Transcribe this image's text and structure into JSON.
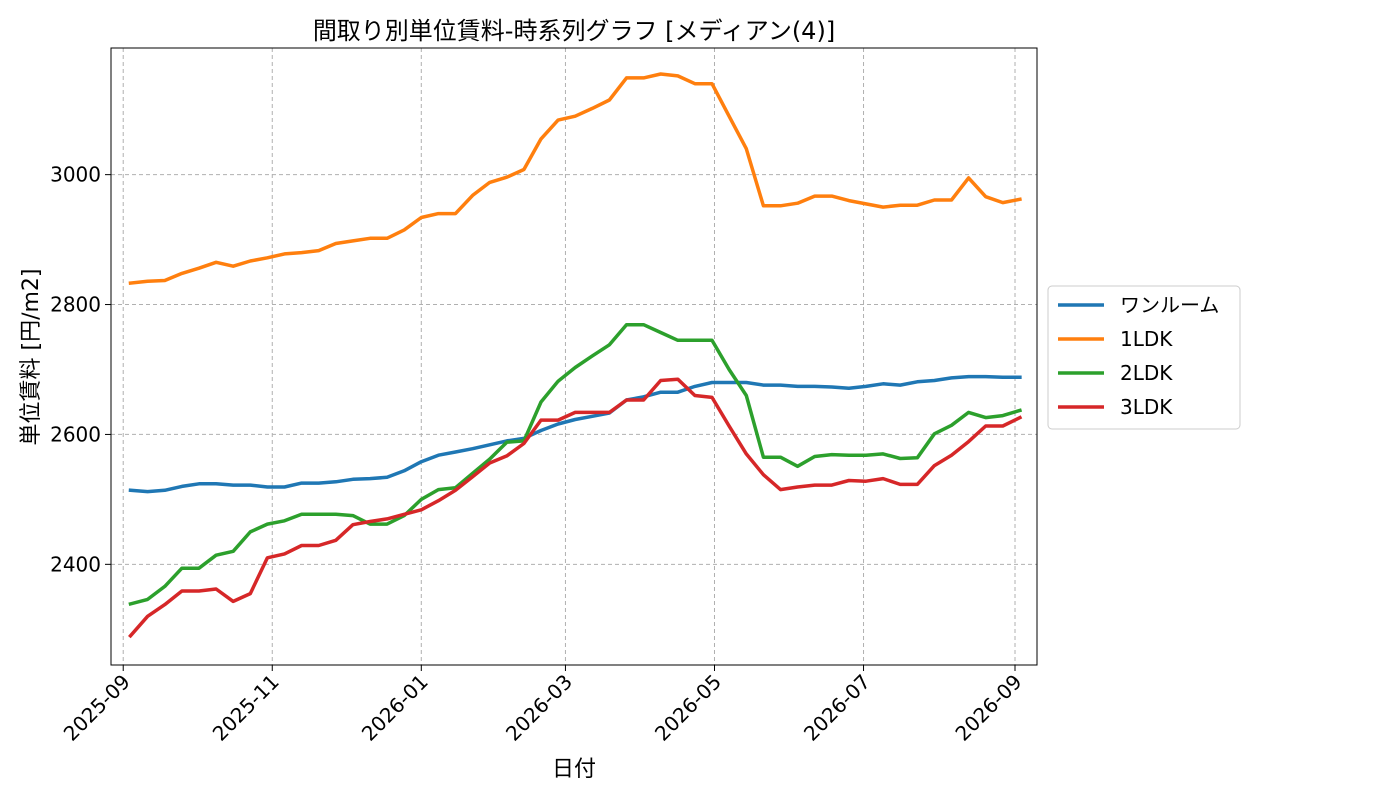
{
  "chart_data": {
    "type": "line",
    "title": "間取り別単位賃料-時系列グラフ [メディアン(4)]",
    "xlabel": "日付",
    "ylabel": "単位賃料 [円/m2]",
    "x_tick_labels": [
      "2025-09",
      "2025-11",
      "2026-01",
      "2026-03",
      "2026-05",
      "2026-07",
      "2026-09"
    ],
    "y_ticks": [
      2400,
      2600,
      2800,
      3000
    ],
    "ylim": [
      2245,
      3195
    ],
    "grid": true,
    "legend_position": "right",
    "x": [
      "2025-09-04",
      "2025-09-11",
      "2025-09-18",
      "2025-09-25",
      "2025-10-02",
      "2025-10-09",
      "2025-10-16",
      "2025-10-23",
      "2025-10-30",
      "2025-11-06",
      "2025-11-13",
      "2025-11-20",
      "2025-11-27",
      "2025-12-04",
      "2025-12-11",
      "2025-12-18",
      "2025-12-25",
      "2026-01-01",
      "2026-01-08",
      "2026-01-15",
      "2026-01-22",
      "2026-01-29",
      "2026-02-05",
      "2026-02-12",
      "2026-02-19",
      "2026-02-26",
      "2026-03-05",
      "2026-03-12",
      "2026-03-19",
      "2026-03-26",
      "2026-04-02",
      "2026-04-09",
      "2026-04-16",
      "2026-04-23",
      "2026-04-30",
      "2026-05-07",
      "2026-05-14",
      "2026-05-21",
      "2026-05-28",
      "2026-06-04",
      "2026-06-11",
      "2026-06-18",
      "2026-06-25",
      "2026-07-02",
      "2026-07-09",
      "2026-07-16",
      "2026-07-23",
      "2026-07-30",
      "2026-08-06",
      "2026-08-13",
      "2026-08-20",
      "2026-08-27",
      "2026-09-03"
    ],
    "series": [
      {
        "name": "ワンルーム",
        "color": "#1f77b4",
        "values": [
          2514,
          2512,
          2514,
          2520,
          2524,
          2524,
          2522,
          2522,
          2519,
          2519,
          2525,
          2525,
          2527,
          2531,
          2532,
          2534,
          2544,
          2558,
          2568,
          2573,
          2578,
          2584,
          2590,
          2594,
          2606,
          2616,
          2623,
          2628,
          2633,
          2653,
          2658,
          2665,
          2665,
          2674,
          2680,
          2680,
          2680,
          2676,
          2676,
          2674,
          2674,
          2673,
          2671,
          2674,
          2678,
          2676,
          2681,
          2683,
          2687,
          2689,
          2689,
          2688,
          2688
        ]
      },
      {
        "name": "1LDK",
        "color": "#ff7f0e",
        "values": [
          2833,
          2836,
          2837,
          2848,
          2856,
          2865,
          2859,
          2867,
          2872,
          2878,
          2880,
          2883,
          2894,
          2898,
          2902,
          2902,
          2915,
          2934,
          2940,
          2940,
          2968,
          2988,
          2996,
          3008,
          3055,
          3084,
          3090,
          3102,
          3115,
          3149,
          3149,
          3155,
          3152,
          3140,
          3140,
          3090,
          3040,
          2952,
          2952,
          2956,
          2967,
          2967,
          2960,
          2955,
          2950,
          2953,
          2953,
          2961,
          2961,
          2995,
          2966,
          2957,
          2962
        ]
      },
      {
        "name": "2LDK",
        "color": "#2ca02c",
        "values": [
          2339,
          2346,
          2366,
          2394,
          2394,
          2414,
          2420,
          2450,
          2462,
          2467,
          2477,
          2477,
          2477,
          2475,
          2462,
          2462,
          2475,
          2500,
          2515,
          2518,
          2540,
          2562,
          2588,
          2590,
          2650,
          2682,
          2703,
          2721,
          2738,
          2769,
          2769,
          2757,
          2745,
          2745,
          2745,
          2700,
          2660,
          2565,
          2565,
          2551,
          2566,
          2569,
          2568,
          2568,
          2570,
          2563,
          2564,
          2601,
          2614,
          2634,
          2626,
          2629,
          2637
        ]
      },
      {
        "name": "3LDK",
        "color": "#d62728",
        "values": [
          2290,
          2320,
          2338,
          2359,
          2359,
          2362,
          2343,
          2355,
          2410,
          2416,
          2429,
          2429,
          2437,
          2461,
          2466,
          2470,
          2477,
          2484,
          2498,
          2514,
          2535,
          2556,
          2567,
          2586,
          2622,
          2622,
          2634,
          2634,
          2634,
          2653,
          2653,
          2683,
          2685,
          2660,
          2657,
          2613,
          2570,
          2538,
          2515,
          2519,
          2522,
          2522,
          2529,
          2528,
          2532,
          2523,
          2523,
          2552,
          2568,
          2589,
          2613,
          2613,
          2626
        ]
      }
    ]
  }
}
